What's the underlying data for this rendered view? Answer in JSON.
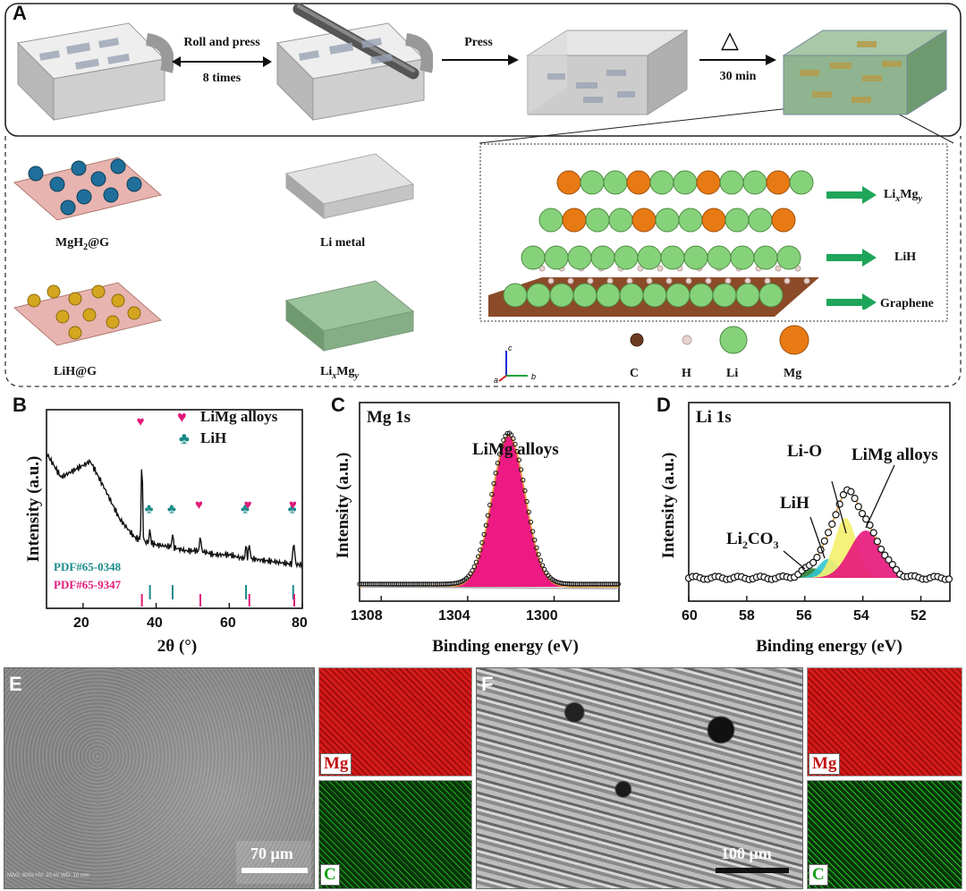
{
  "panel_a": {
    "letter": "A",
    "step1": {
      "line1": "Roll and press",
      "line2": "8 times"
    },
    "step2": "Press",
    "step3": {
      "symbol": "△",
      "label": "30 min"
    },
    "materials": [
      {
        "name": "MgH2@G"
      },
      {
        "name": "Li metal"
      },
      {
        "name": "LiH@G"
      },
      {
        "name": "LixMgy"
      }
    ],
    "structure_labels": [
      "LixMgy",
      "LiH",
      "Graphene"
    ],
    "atom_legend": [
      {
        "symbol": "C",
        "color": "#6b3b1f"
      },
      {
        "symbol": "H",
        "color": "#e8d2cc"
      },
      {
        "symbol": "Li",
        "color": "#86d27a"
      },
      {
        "symbol": "Mg",
        "color": "#e87a14"
      }
    ],
    "axes": {
      "c": "c",
      "a": "a",
      "b": "b"
    }
  },
  "panel_b": {
    "letter": "B",
    "legend": [
      {
        "symbol": "♥",
        "label": "LiMg alloys",
        "color": "#e0197a"
      },
      {
        "symbol": "♣",
        "label": "LiH",
        "color": "#1a8a8a"
      }
    ],
    "pdf_labels": [
      {
        "text": "PDF#65-0348",
        "color": "#1a8a8a"
      },
      {
        "text": "PDF#65-9347",
        "color": "#e0197a"
      }
    ],
    "ylabel": "Intensity (a.u.)",
    "xlabel": "2θ (°)",
    "xticks": [
      "20",
      "40",
      "60",
      "80"
    ]
  },
  "panel_c": {
    "letter": "C",
    "title": "Mg 1s",
    "annotation": "LiMg alloys",
    "ylabel": "Intensity (a.u.)",
    "xlabel": "Binding energy (eV)",
    "xticks": [
      "1308",
      "1304",
      "1300"
    ]
  },
  "panel_d": {
    "letter": "D",
    "title": "Li 1s",
    "annotations": [
      "Li-O",
      "LiMg alloys",
      "LiH",
      "Li2CO3"
    ],
    "ylabel": "Intensity (a.u.)",
    "xlabel": "Binding energy (eV)",
    "xticks": [
      "60",
      "58",
      "56",
      "54",
      "52"
    ]
  },
  "panel_e": {
    "letter": "E",
    "scale": "70 μm",
    "map_labels": [
      "Mg",
      "C"
    ],
    "info": "MAG: 600x   HV: 20 kV   WD: 10 mm"
  },
  "panel_f": {
    "letter": "F",
    "scale": "100 μm",
    "map_labels": [
      "Mg",
      "C"
    ]
  },
  "chart_data": [
    {
      "type": "line",
      "panel": "B",
      "ylabel": "Intensity (a.u.)",
      "xlabel": "2θ (°)",
      "xlim": [
        10,
        80
      ],
      "series": [
        {
          "name": "",
          "x": [
            10,
            14,
            18,
            22,
            26,
            30,
            34,
            36,
            38,
            40,
            44,
            48,
            52,
            56,
            60,
            64,
            66,
            70,
            74,
            78,
            80
          ],
          "values": [
            0.78,
            0.66,
            0.7,
            0.74,
            0.6,
            0.45,
            0.36,
            0.34,
            0.33,
            0.32,
            0.31,
            0.29,
            0.29,
            0.27,
            0.27,
            0.25,
            0.25,
            0.24,
            0.23,
            0.22,
            0.22
          ]
        }
      ],
      "peaks": [
        {
          "x": 36.1,
          "phase": "LiMg alloys"
        },
        {
          "x": 38.3,
          "phase": "LiH"
        },
        {
          "x": 44.5,
          "phase": "LiH"
        },
        {
          "x": 52.1,
          "phase": "LiMg alloys"
        },
        {
          "x": 64.6,
          "phase": "LiH"
        },
        {
          "x": 65.5,
          "phase": "LiMg alloys"
        },
        {
          "x": 77.5,
          "phase": "LiH"
        },
        {
          "x": 77.8,
          "phase": "LiMg alloys"
        }
      ],
      "reference_lines": {
        "LiH": [
          38.3,
          44.5,
          64.6,
          77.5
        ],
        "LiMg alloys": [
          36.1,
          52.1,
          65.5,
          77.8
        ]
      }
    },
    {
      "type": "line",
      "panel": "C",
      "title": "Mg 1s",
      "xlabel": "Binding energy (eV)",
      "ylabel": "Intensity (a.u.)",
      "xlim": [
        1309,
        1297
      ],
      "series": [
        {
          "name": "LiMg alloys",
          "peak_center": 1302.1,
          "fwhm": 1.8,
          "height": 0.82
        }
      ]
    },
    {
      "type": "line",
      "panel": "D",
      "title": "Li 1s",
      "xlabel": "Binding energy (eV)",
      "ylabel": "Intensity (a.u.)",
      "xlim": [
        60,
        51
      ],
      "series": [
        {
          "name": "Li2CO3",
          "peak_center": 55.7,
          "fwhm": 0.9,
          "height": 0.06,
          "color": "#2e7d32"
        },
        {
          "name": "LiH",
          "peak_center": 55.2,
          "fwhm": 0.8,
          "height": 0.12,
          "color": "#33c6d1"
        },
        {
          "name": "Li-O",
          "peak_center": 54.6,
          "fwhm": 0.9,
          "height": 0.38,
          "color": "#f4f06b"
        },
        {
          "name": "LiMg alloys",
          "peak_center": 53.9,
          "fwhm": 1.3,
          "height": 0.3,
          "color": "#e7157b"
        }
      ]
    }
  ]
}
